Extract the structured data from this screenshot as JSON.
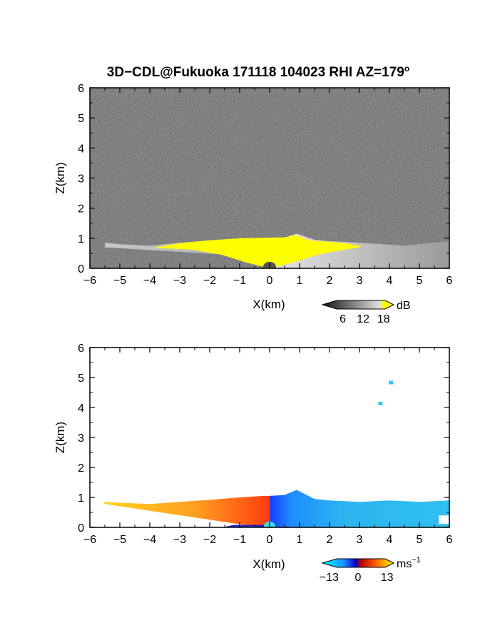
{
  "title": {
    "main": "3D−CDL@Fukuoka 171118 104023 RHI AZ=179",
    "superscript": "o"
  },
  "colors": {
    "background_noise": "#2a2a2a",
    "echo_yellow": "#ffff00",
    "doppler_toward": "#1e90ff",
    "doppler_away": "#ff4500"
  },
  "chart_data": [
    {
      "type": "heatmap",
      "name": "reflectivity",
      "title": "3D−CDL@Fukuoka 171118 104023 RHI AZ=179°",
      "xlabel": "X(km)",
      "ylabel": "Z(km)",
      "xlim": [
        -6,
        6
      ],
      "ylim": [
        0,
        6
      ],
      "xticks": [
        "−6",
        "−5",
        "−4",
        "−3",
        "−2",
        "−1",
        "0",
        "1",
        "2",
        "3",
        "4",
        "5",
        "6"
      ],
      "yticks": [
        "0",
        "1",
        "2",
        "3",
        "4",
        "5",
        "6"
      ],
      "colorbar": {
        "unit": "dB",
        "ticks": [
          "6",
          "12",
          "18"
        ],
        "tick_values": [
          6,
          12,
          18
        ],
        "range": [
          0,
          21
        ],
        "colormap": "gray-to-yellow"
      },
      "echo_top_profile": {
        "x": [
          -5.5,
          -5,
          -4,
          -3,
          -2,
          -1,
          0,
          0.5,
          0.9,
          1.5,
          2,
          3,
          3.8,
          4.5,
          5,
          6
        ],
        "z": [
          0.85,
          0.8,
          0.75,
          0.85,
          0.92,
          0.98,
          1.0,
          1.02,
          1.15,
          0.95,
          0.9,
          0.85,
          0.8,
          0.75,
          0.8,
          0.9
        ]
      }
    },
    {
      "type": "heatmap",
      "name": "doppler-velocity",
      "xlabel": "X(km)",
      "ylabel": "Z(km)",
      "xlim": [
        -6,
        6
      ],
      "ylim": [
        0,
        6
      ],
      "xticks": [
        "−6",
        "−5",
        "−4",
        "−3",
        "−2",
        "−1",
        "0",
        "1",
        "2",
        "3",
        "4",
        "5",
        "6"
      ],
      "yticks": [
        "0",
        "1",
        "2",
        "3",
        "4",
        "5",
        "6"
      ],
      "colorbar": {
        "unit": "ms",
        "unit_superscript": "−1",
        "ticks": [
          "−13",
          "0",
          "13"
        ],
        "tick_values": [
          -13,
          0,
          13
        ],
        "range": [
          -16,
          16
        ],
        "colormap": "cyan-blue-red-yellow"
      },
      "echo_top_profile": {
        "x": [
          -5.5,
          -5,
          -4,
          -3,
          -2,
          -1,
          -0.2,
          0,
          0.5,
          0.9,
          1.5,
          2,
          3,
          4,
          5,
          6
        ],
        "z": [
          0.85,
          0.82,
          0.78,
          0.85,
          0.92,
          1.0,
          1.05,
          1.05,
          1.08,
          1.25,
          0.95,
          0.9,
          0.85,
          0.9,
          0.85,
          0.9
        ]
      },
      "isolated_echoes": [
        {
          "x": 4.05,
          "z": 4.82
        },
        {
          "x": 3.7,
          "z": 4.12
        }
      ]
    }
  ]
}
